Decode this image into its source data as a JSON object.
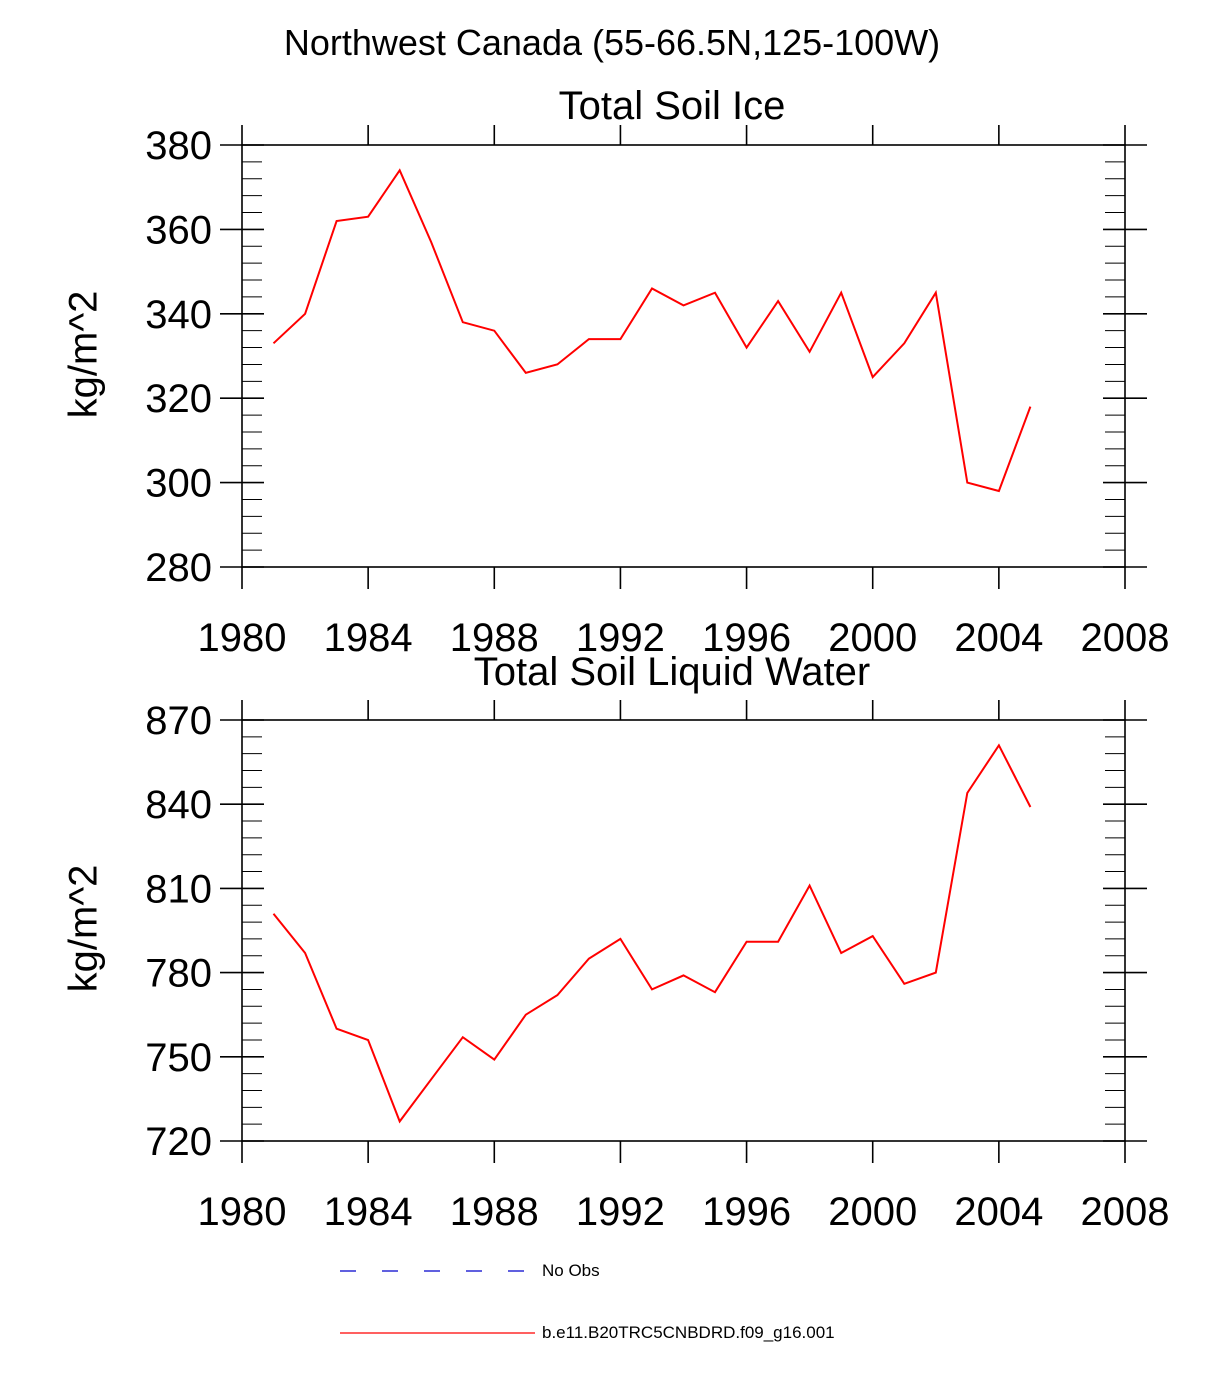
{
  "figure_title": "Northwest Canada (55-66.5N,125-100W)",
  "colors": {
    "model": "#ff0000",
    "obs": "#0000cc",
    "axis": "#000000"
  },
  "legend": [
    {
      "label": "No Obs",
      "style": "dashed",
      "color": "#0000cc"
    },
    {
      "label": "b.e11.B20TRC5CNBDRD.f09_g16.001",
      "style": "solid",
      "color": "#ff0000"
    }
  ],
  "chart_data": [
    {
      "type": "line",
      "title": "Total Soil Ice",
      "xlabel": "",
      "ylabel": "kg/m^2",
      "xlim": [
        1980,
        2008
      ],
      "ylim": [
        280,
        380
      ],
      "xticks": [
        1980,
        1984,
        1988,
        1992,
        1996,
        2000,
        2004,
        2008
      ],
      "yticks": [
        280,
        300,
        320,
        340,
        360,
        380
      ],
      "series": [
        {
          "name": "b.e11.B20TRC5CNBDRD.f09_g16.001",
          "x": [
            1981,
            1982,
            1983,
            1984,
            1985,
            1986,
            1987,
            1988,
            1989,
            1990,
            1991,
            1992,
            1993,
            1994,
            1995,
            1996,
            1997,
            1998,
            1999,
            2000,
            2001,
            2002,
            2003,
            2004,
            2005
          ],
          "values": [
            333,
            340,
            362,
            363,
            374,
            357,
            338,
            336,
            326,
            328,
            334,
            334,
            346,
            342,
            345,
            332,
            343,
            331,
            345,
            325,
            333,
            345,
            300,
            298,
            318
          ]
        }
      ]
    },
    {
      "type": "line",
      "title": "Total Soil Liquid Water",
      "xlabel": "",
      "ylabel": "kg/m^2",
      "xlim": [
        1980,
        2008
      ],
      "ylim": [
        720,
        870
      ],
      "xticks": [
        1980,
        1984,
        1988,
        1992,
        1996,
        2000,
        2004,
        2008
      ],
      "yticks": [
        720,
        750,
        780,
        810,
        840,
        870
      ],
      "series": [
        {
          "name": "b.e11.B20TRC5CNBDRD.f09_g16.001",
          "x": [
            1981,
            1982,
            1983,
            1984,
            1985,
            1986,
            1987,
            1988,
            1989,
            1990,
            1991,
            1992,
            1993,
            1994,
            1995,
            1996,
            1997,
            1998,
            1999,
            2000,
            2001,
            2002,
            2003,
            2004,
            2005
          ],
          "values": [
            801,
            787,
            760,
            756,
            727,
            742,
            757,
            749,
            765,
            772,
            785,
            792,
            774,
            779,
            773,
            791,
            791,
            811,
            787,
            793,
            776,
            780,
            844,
            861,
            839
          ]
        }
      ]
    }
  ]
}
